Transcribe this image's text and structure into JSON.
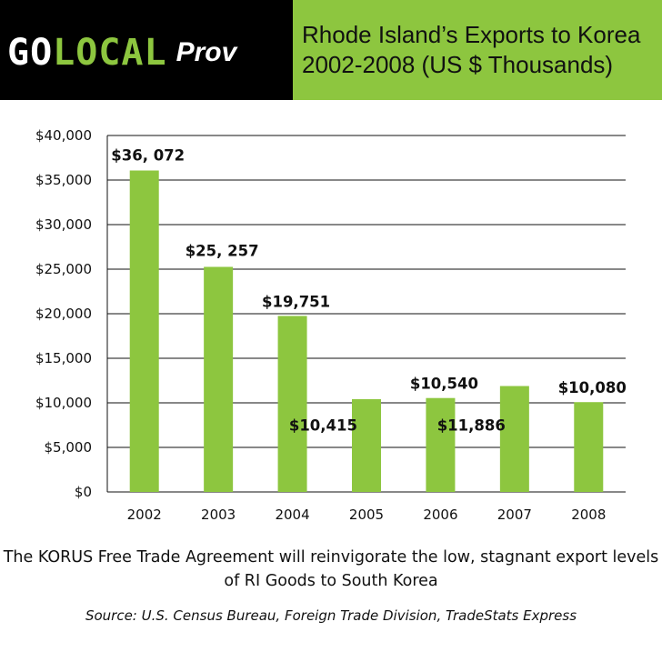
{
  "header": {
    "logo_go": "GO",
    "logo_local": "LOCAL",
    "logo_prov": "Prov"
  },
  "caption": "The KORUS Free Trade Agreement will reinvigorate the low, stagnant export levels of RI Goods to South Korea",
  "source": "Source: U.S. Census Bureau, Foreign Trade Division, TradeStats Express",
  "colors": {
    "bar": "#8dc63f",
    "header_bg": "#000000",
    "title_bg": "#8dc63f"
  },
  "chart_data": {
    "type": "bar",
    "title": "Rhode Island’s Exports to Korea 2002-2008 (US $ Thousands)",
    "categories": [
      "2002",
      "2003",
      "2004",
      "2005",
      "2006",
      "2007",
      "2008"
    ],
    "values": [
      36072,
      25257,
      19751,
      10415,
      10540,
      11886,
      10080
    ],
    "data_labels": [
      "$36, 072",
      "$25, 257",
      "$19,751",
      "$10,415",
      "$10,540",
      "$11,886",
      "$10,080"
    ],
    "ylim": [
      0,
      40000
    ],
    "yticks": [
      0,
      5000,
      10000,
      15000,
      20000,
      25000,
      30000,
      35000,
      40000
    ],
    "ytick_labels": [
      "$0",
      "$5,000",
      "$10,000",
      "$15,000",
      "$20,000",
      "$25,000",
      "$30,000",
      "$35,000",
      "$40,000"
    ],
    "xlabel": "",
    "ylabel": "",
    "grid": true,
    "legend": "none"
  }
}
